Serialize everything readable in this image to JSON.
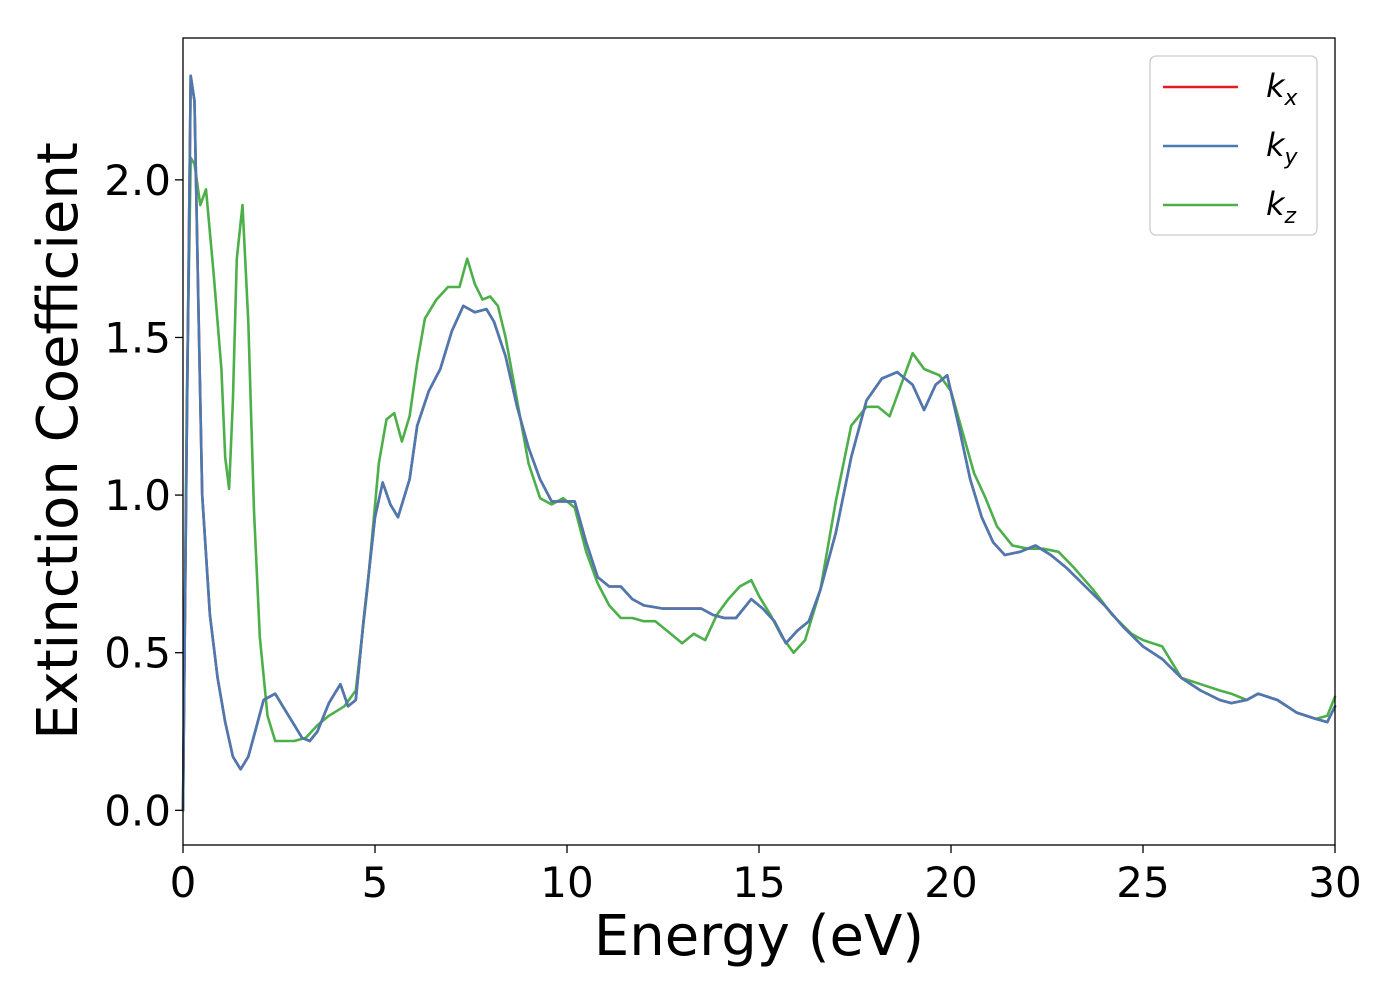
{
  "chart_data": {
    "type": "line",
    "title": "",
    "xlabel": "Energy (eV)",
    "ylabel": "Extinction Coefficient",
    "xlim": [
      0,
      30
    ],
    "ylim": [
      -0.11,
      2.45
    ],
    "xticks": [
      0,
      5,
      10,
      15,
      20,
      25,
      30
    ],
    "xtick_labels": [
      "0",
      "5",
      "10",
      "15",
      "20",
      "25",
      "30"
    ],
    "yticks": [
      0.0,
      0.5,
      1.0,
      1.5,
      2.0
    ],
    "ytick_labels": [
      "0.0",
      "0.5",
      "1.0",
      "1.5",
      "2.0"
    ],
    "grid": false,
    "legend_position": "top-right",
    "series": [
      {
        "name": "k_x",
        "label_base": "k",
        "label_sub": "x",
        "color": "#e41a1c",
        "x": [
          0.0,
          0.1,
          0.2,
          0.3,
          0.4,
          0.5,
          0.7,
          0.9,
          1.1,
          1.3,
          1.5,
          1.7,
          1.9,
          2.1,
          2.4,
          2.6,
          2.9,
          3.1,
          3.3,
          3.5,
          3.8,
          4.1,
          4.3,
          4.5,
          4.7,
          5.0,
          5.2,
          5.4,
          5.6,
          5.9,
          6.1,
          6.4,
          6.7,
          7.0,
          7.3,
          7.6,
          7.9,
          8.1,
          8.4,
          8.7,
          9.0,
          9.3,
          9.6,
          9.9,
          10.2,
          10.5,
          10.8,
          11.1,
          11.4,
          11.7,
          12.0,
          12.5,
          13.0,
          13.5,
          13.8,
          14.1,
          14.4,
          14.8,
          15.1,
          15.4,
          15.7,
          16.0,
          16.3,
          16.6,
          17.0,
          17.4,
          17.8,
          18.2,
          18.6,
          19.0,
          19.3,
          19.6,
          19.9,
          20.2,
          20.5,
          20.8,
          21.1,
          21.4,
          21.8,
          22.2,
          22.6,
          23.0,
          23.5,
          24.0,
          24.5,
          25.0,
          25.5,
          26.0,
          26.5,
          27.0,
          27.3,
          27.7,
          28.0,
          28.5,
          29.0,
          29.5,
          29.8,
          30.0
        ],
        "y": [
          0.0,
          1.2,
          2.33,
          2.25,
          1.6,
          1.0,
          0.62,
          0.42,
          0.28,
          0.17,
          0.13,
          0.17,
          0.26,
          0.35,
          0.37,
          0.33,
          0.27,
          0.23,
          0.22,
          0.25,
          0.34,
          0.4,
          0.33,
          0.35,
          0.6,
          0.93,
          1.04,
          0.97,
          0.93,
          1.05,
          1.22,
          1.33,
          1.4,
          1.52,
          1.6,
          1.58,
          1.59,
          1.55,
          1.44,
          1.28,
          1.15,
          1.05,
          0.98,
          0.98,
          0.98,
          0.85,
          0.74,
          0.71,
          0.71,
          0.67,
          0.65,
          0.64,
          0.64,
          0.64,
          0.62,
          0.61,
          0.61,
          0.67,
          0.64,
          0.6,
          0.53,
          0.57,
          0.6,
          0.7,
          0.88,
          1.12,
          1.3,
          1.37,
          1.39,
          1.35,
          1.27,
          1.35,
          1.38,
          1.22,
          1.05,
          0.93,
          0.85,
          0.81,
          0.82,
          0.84,
          0.81,
          0.77,
          0.71,
          0.65,
          0.58,
          0.52,
          0.48,
          0.42,
          0.38,
          0.35,
          0.34,
          0.35,
          0.37,
          0.35,
          0.31,
          0.29,
          0.28,
          0.33
        ]
      },
      {
        "name": "k_y",
        "label_base": "k",
        "label_sub": "y",
        "color": "#4a7ab1",
        "x": [
          0.0,
          0.1,
          0.2,
          0.3,
          0.4,
          0.5,
          0.7,
          0.9,
          1.1,
          1.3,
          1.5,
          1.7,
          1.9,
          2.1,
          2.4,
          2.6,
          2.9,
          3.1,
          3.3,
          3.5,
          3.8,
          4.1,
          4.3,
          4.5,
          4.7,
          5.0,
          5.2,
          5.4,
          5.6,
          5.9,
          6.1,
          6.4,
          6.7,
          7.0,
          7.3,
          7.6,
          7.9,
          8.1,
          8.4,
          8.7,
          9.0,
          9.3,
          9.6,
          9.9,
          10.2,
          10.5,
          10.8,
          11.1,
          11.4,
          11.7,
          12.0,
          12.5,
          13.0,
          13.5,
          13.8,
          14.1,
          14.4,
          14.8,
          15.1,
          15.4,
          15.7,
          16.0,
          16.3,
          16.6,
          17.0,
          17.4,
          17.8,
          18.2,
          18.6,
          19.0,
          19.3,
          19.6,
          19.9,
          20.2,
          20.5,
          20.8,
          21.1,
          21.4,
          21.8,
          22.2,
          22.6,
          23.0,
          23.5,
          24.0,
          24.5,
          25.0,
          25.5,
          26.0,
          26.5,
          27.0,
          27.3,
          27.7,
          28.0,
          28.5,
          29.0,
          29.5,
          29.8,
          30.0
        ],
        "y": [
          0.0,
          1.2,
          2.33,
          2.25,
          1.6,
          1.0,
          0.62,
          0.42,
          0.28,
          0.17,
          0.13,
          0.17,
          0.26,
          0.35,
          0.37,
          0.33,
          0.27,
          0.23,
          0.22,
          0.25,
          0.34,
          0.4,
          0.33,
          0.35,
          0.6,
          0.93,
          1.04,
          0.97,
          0.93,
          1.05,
          1.22,
          1.33,
          1.4,
          1.52,
          1.6,
          1.58,
          1.59,
          1.55,
          1.44,
          1.28,
          1.15,
          1.05,
          0.98,
          0.98,
          0.98,
          0.85,
          0.74,
          0.71,
          0.71,
          0.67,
          0.65,
          0.64,
          0.64,
          0.64,
          0.62,
          0.61,
          0.61,
          0.67,
          0.64,
          0.6,
          0.53,
          0.57,
          0.6,
          0.7,
          0.88,
          1.12,
          1.3,
          1.37,
          1.39,
          1.35,
          1.27,
          1.35,
          1.38,
          1.22,
          1.05,
          0.93,
          0.85,
          0.81,
          0.82,
          0.84,
          0.81,
          0.77,
          0.71,
          0.65,
          0.58,
          0.52,
          0.48,
          0.42,
          0.38,
          0.35,
          0.34,
          0.35,
          0.37,
          0.35,
          0.31,
          0.29,
          0.28,
          0.33
        ]
      },
      {
        "name": "k_z",
        "label_base": "k",
        "label_sub": "z",
        "color": "#4daf4a",
        "x": [
          0.0,
          0.1,
          0.2,
          0.3,
          0.45,
          0.6,
          0.8,
          1.0,
          1.1,
          1.2,
          1.3,
          1.4,
          1.55,
          1.7,
          1.85,
          2.0,
          2.2,
          2.4,
          2.6,
          2.9,
          3.2,
          3.5,
          3.8,
          4.2,
          4.5,
          4.8,
          5.1,
          5.3,
          5.5,
          5.7,
          5.9,
          6.1,
          6.3,
          6.6,
          6.9,
          7.2,
          7.4,
          7.6,
          7.8,
          8.0,
          8.2,
          8.4,
          8.7,
          9.0,
          9.3,
          9.6,
          9.9,
          10.2,
          10.5,
          10.8,
          11.1,
          11.4,
          11.7,
          12.0,
          12.3,
          12.7,
          13.0,
          13.3,
          13.6,
          13.9,
          14.2,
          14.5,
          14.8,
          15.0,
          15.3,
          15.6,
          15.9,
          16.2,
          16.6,
          17.0,
          17.4,
          17.8,
          18.1,
          18.4,
          18.7,
          19.0,
          19.3,
          19.7,
          20.0,
          20.3,
          20.6,
          20.9,
          21.2,
          21.6,
          22.0,
          22.4,
          22.8,
          23.2,
          23.7,
          24.2,
          24.7,
          25.0,
          25.5,
          26.0,
          26.5,
          27.0,
          27.3,
          27.7,
          28.0,
          28.5,
          29.0,
          29.5,
          29.8,
          30.0
        ],
        "y": [
          0.0,
          1.3,
          2.07,
          2.05,
          1.92,
          1.97,
          1.7,
          1.4,
          1.12,
          1.02,
          1.3,
          1.75,
          1.92,
          1.55,
          0.95,
          0.55,
          0.3,
          0.22,
          0.22,
          0.22,
          0.23,
          0.27,
          0.3,
          0.33,
          0.38,
          0.7,
          1.1,
          1.24,
          1.26,
          1.17,
          1.25,
          1.42,
          1.56,
          1.62,
          1.66,
          1.66,
          1.75,
          1.67,
          1.62,
          1.63,
          1.6,
          1.5,
          1.3,
          1.1,
          0.99,
          0.97,
          0.99,
          0.96,
          0.82,
          0.72,
          0.65,
          0.61,
          0.61,
          0.6,
          0.6,
          0.56,
          0.53,
          0.56,
          0.54,
          0.62,
          0.67,
          0.71,
          0.73,
          0.68,
          0.62,
          0.55,
          0.5,
          0.54,
          0.7,
          0.98,
          1.22,
          1.28,
          1.28,
          1.25,
          1.35,
          1.45,
          1.4,
          1.38,
          1.33,
          1.2,
          1.07,
          0.99,
          0.9,
          0.84,
          0.83,
          0.83,
          0.82,
          0.77,
          0.7,
          0.62,
          0.56,
          0.54,
          0.52,
          0.42,
          0.4,
          0.38,
          0.37,
          0.35,
          0.37,
          0.35,
          0.31,
          0.29,
          0.3,
          0.36
        ]
      }
    ]
  }
}
